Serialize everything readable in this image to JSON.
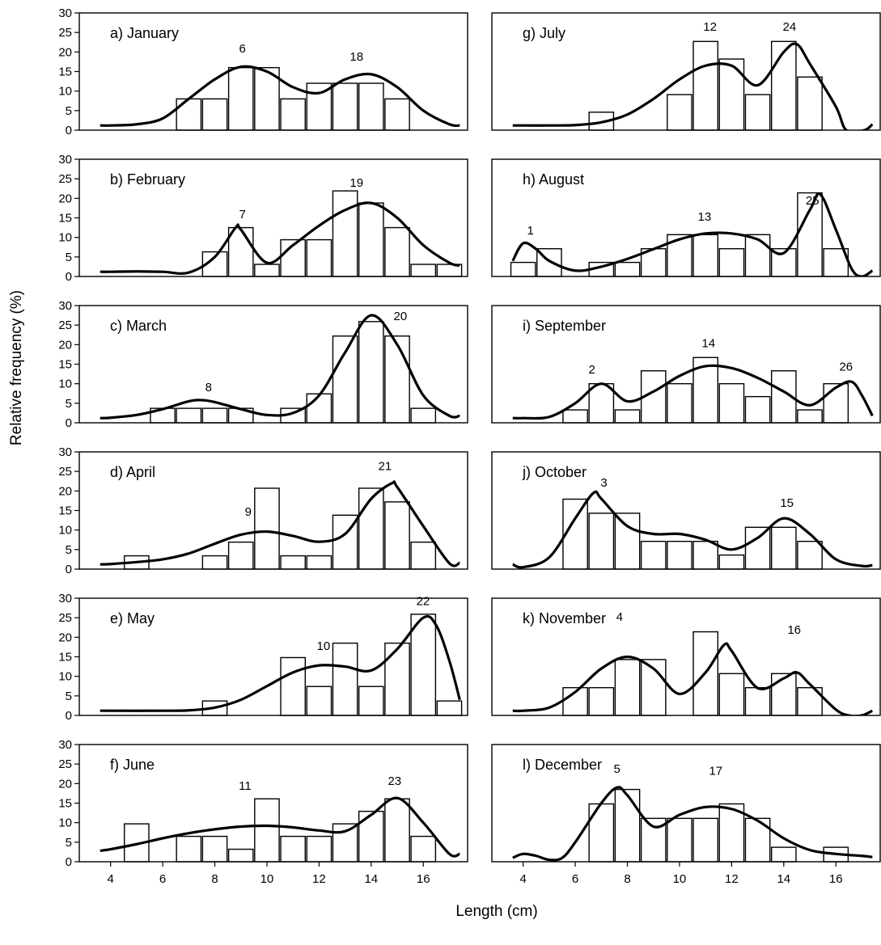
{
  "ylabel": "Relative frequency (%)",
  "xlabel": "Length (cm)",
  "chart_data": [
    {
      "type": "bar",
      "title": "a) January",
      "bar_color": "#ffffff",
      "curve_color": "#000000",
      "xlim": [
        2.8,
        17.7
      ],
      "ylim": [
        0,
        30
      ],
      "yticks": [
        0,
        5,
        10,
        15,
        20,
        25,
        30
      ],
      "bars": {
        "x": [
          7,
          8,
          9,
          10,
          11,
          12,
          13,
          14,
          15
        ],
        "values": [
          8,
          8,
          16,
          16,
          8,
          12,
          12,
          12,
          8
        ]
      },
      "curve": {
        "x": [
          3.6,
          4,
          5,
          6,
          7,
          8,
          9,
          10,
          11,
          12,
          13,
          14,
          15,
          16,
          17,
          17.4
        ],
        "values": [
          1.2,
          1.2,
          1.5,
          3,
          8,
          13,
          16.2,
          15,
          11,
          9.5,
          13,
          14.3,
          11,
          5,
          1.5,
          1.2
        ]
      },
      "annotations": [
        {
          "text": "6",
          "x": 9.06,
          "y": 19.9
        },
        {
          "text": "18",
          "x": 13.44,
          "y": 17.8
        }
      ]
    },
    {
      "type": "bar",
      "title": "b) February",
      "bar_color": "#ffffff",
      "curve_color": "#000000",
      "xlim": [
        2.8,
        17.7
      ],
      "ylim": [
        0,
        30
      ],
      "yticks": [
        0,
        5,
        10,
        15,
        20,
        25,
        30
      ],
      "bars": {
        "x": [
          8,
          9,
          10,
          11,
          12,
          13,
          14,
          15,
          16,
          17
        ],
        "values": [
          6.3,
          12.5,
          3.1,
          9.4,
          9.4,
          21.9,
          18.8,
          12.5,
          3.1,
          3.1
        ]
      },
      "curve": {
        "x": [
          3.6,
          4,
          5,
          6,
          7,
          8,
          8.8,
          9,
          10,
          11,
          12,
          13,
          14,
          15,
          16,
          17,
          17.4
        ],
        "values": [
          1.2,
          1.2,
          1.3,
          1.2,
          1,
          5,
          12.5,
          12,
          3.5,
          8,
          13,
          17,
          18.8,
          15,
          8,
          3.5,
          2.8
        ]
      },
      "annotations": [
        {
          "text": "7",
          "x": 9.06,
          "y": 14.9
        },
        {
          "text": "19",
          "x": 13.44,
          "y": 23
        }
      ]
    },
    {
      "type": "bar",
      "title": "c) March",
      "bar_color": "#ffffff",
      "curve_color": "#000000",
      "xlim": [
        2.8,
        17.7
      ],
      "ylim": [
        0,
        30
      ],
      "yticks": [
        0,
        5,
        10,
        15,
        20,
        25,
        30
      ],
      "bars": {
        "x": [
          6,
          7,
          8,
          9,
          11,
          12,
          13,
          14,
          15,
          16
        ],
        "values": [
          3.7,
          3.7,
          3.7,
          3.7,
          3.7,
          7.4,
          22.2,
          25.9,
          22.2,
          3.7
        ]
      },
      "curve": {
        "x": [
          3.6,
          4,
          5,
          6,
          7,
          7.5,
          8,
          9,
          10,
          11,
          12,
          13,
          14,
          15,
          16,
          17,
          17.4
        ],
        "values": [
          1.2,
          1.3,
          2,
          3.5,
          5.5,
          5.8,
          5.3,
          3.5,
          2,
          2.5,
          7,
          18,
          27.5,
          20,
          7,
          1.8,
          1.8
        ]
      },
      "annotations": [
        {
          "text": "8",
          "x": 7.76,
          "y": 8.1
        },
        {
          "text": "20",
          "x": 15.12,
          "y": 26.3
        }
      ]
    },
    {
      "type": "bar",
      "title": "d) April",
      "bar_color": "#ffffff",
      "curve_color": "#000000",
      "xlim": [
        2.8,
        17.7
      ],
      "ylim": [
        0,
        30
      ],
      "yticks": [
        0,
        5,
        10,
        15,
        20,
        25,
        30
      ],
      "bars": {
        "x": [
          5,
          8,
          9,
          10,
          11,
          12,
          13,
          14,
          15,
          16
        ],
        "values": [
          3.4,
          3.4,
          6.9,
          20.7,
          3.4,
          3.4,
          13.8,
          20.7,
          17.2,
          6.9
        ]
      },
      "curve": {
        "x": [
          3.6,
          4,
          5,
          6,
          7,
          8,
          9,
          10,
          11,
          12,
          13,
          14,
          14.8,
          15,
          16,
          17,
          17.4
        ],
        "values": [
          1.2,
          1.3,
          1.8,
          2.5,
          4,
          6.5,
          8.8,
          9.6,
          8.5,
          7,
          9,
          18,
          22,
          21,
          11,
          1.5,
          1.6
        ]
      },
      "annotations": [
        {
          "text": "9",
          "x": 9.28,
          "y": 13.7
        },
        {
          "text": "21",
          "x": 14.53,
          "y": 25.3
        }
      ]
    },
    {
      "type": "bar",
      "title": "e) May",
      "bar_color": "#ffffff",
      "curve_color": "#000000",
      "xlim": [
        2.8,
        17.7
      ],
      "ylim": [
        0,
        30
      ],
      "yticks": [
        0,
        5,
        10,
        15,
        20,
        25,
        30
      ],
      "bars": {
        "x": [
          8,
          11,
          12,
          13,
          14,
          15,
          16,
          17
        ],
        "values": [
          3.7,
          14.8,
          7.4,
          18.5,
          7.4,
          18.5,
          25.9,
          3.7
        ]
      },
      "curve": {
        "x": [
          3.6,
          4,
          6,
          7,
          8,
          9,
          10,
          11,
          12,
          13,
          14,
          15,
          16,
          16.5,
          17,
          17.4
        ],
        "values": [
          1.2,
          1.2,
          1.2,
          1.3,
          2,
          4,
          7.5,
          11,
          12.8,
          12.5,
          11.5,
          17,
          25,
          23,
          14,
          4
        ]
      },
      "annotations": [
        {
          "text": "10",
          "x": 12.17,
          "y": 16.8
        },
        {
          "text": "22",
          "x": 15.99,
          "y": 28.2
        }
      ]
    },
    {
      "type": "bar",
      "title": "f) June",
      "bar_color": "#ffffff",
      "curve_color": "#000000",
      "xlim": [
        2.8,
        17.7
      ],
      "ylim": [
        0,
        30
      ],
      "yticks": [
        0,
        5,
        10,
        15,
        20,
        25,
        30
      ],
      "xticks": [
        4,
        6,
        8,
        10,
        12,
        14,
        16
      ],
      "bars": {
        "x": [
          5,
          7,
          8,
          9,
          10,
          11,
          12,
          13,
          14,
          15,
          16
        ],
        "values": [
          9.7,
          6.5,
          6.5,
          3.2,
          16.1,
          6.5,
          6.5,
          9.7,
          12.9,
          16.1,
          6.5
        ]
      },
      "curve": {
        "x": [
          3.6,
          4,
          5,
          6,
          7,
          8,
          9,
          10,
          11,
          12,
          13,
          14,
          15,
          16,
          17,
          17.4
        ],
        "values": [
          2.8,
          3.2,
          4.5,
          6,
          7.3,
          8.3,
          9,
          9.2,
          8.8,
          8,
          7.8,
          12,
          16.3,
          10,
          2,
          2
        ]
      },
      "annotations": [
        {
          "text": "11",
          "x": 9.16,
          "y": 18.4
        },
        {
          "text": "23",
          "x": 14.9,
          "y": 19.7
        }
      ]
    },
    {
      "type": "bar",
      "title": "g) July",
      "bar_color": "#ffffff",
      "curve_color": "#000000",
      "xlim": [
        2.8,
        17.7
      ],
      "ylim": [
        0,
        30
      ],
      "bars": {
        "x": [
          7,
          10,
          11,
          12,
          13,
          14,
          15
        ],
        "values": [
          4.6,
          9.1,
          22.7,
          18.2,
          9.1,
          22.7,
          13.6
        ]
      },
      "curve": {
        "x": [
          3.6,
          4,
          5,
          6,
          7,
          8,
          9,
          10,
          11,
          12,
          13,
          14,
          14.5,
          15,
          16,
          16.4,
          17.1,
          17.4
        ],
        "values": [
          1.2,
          1.2,
          1.2,
          1.3,
          2,
          4,
          8,
          13,
          16.5,
          16.5,
          11.5,
          20,
          22,
          17,
          6,
          0,
          0,
          1.5
        ]
      },
      "annotations": [
        {
          "text": "12",
          "x": 11.17,
          "y": 25.5
        },
        {
          "text": "24",
          "x": 14.22,
          "y": 25.5
        }
      ]
    },
    {
      "type": "bar",
      "title": "h) August",
      "bar_color": "#ffffff",
      "curve_color": "#000000",
      "xlim": [
        2.8,
        17.7
      ],
      "ylim": [
        0,
        30
      ],
      "bars": {
        "x": [
          4,
          5,
          7,
          8,
          9,
          10,
          11,
          12,
          13,
          14,
          15,
          16
        ],
        "values": [
          3.6,
          7.1,
          3.6,
          3.6,
          7.1,
          10.7,
          10.7,
          7.1,
          10.7,
          7.1,
          21.4,
          7.1
        ]
      },
      "curve": {
        "x": [
          3.6,
          4,
          4.5,
          5,
          6,
          7,
          8,
          9,
          10,
          11,
          12,
          13,
          14,
          15,
          15.4,
          16,
          16.6,
          17,
          17.4
        ],
        "values": [
          4,
          8.5,
          7,
          4,
          1.5,
          2.5,
          4.5,
          7,
          9.5,
          11,
          11,
          9.5,
          6,
          17,
          21,
          12,
          2,
          0,
          1.5
        ]
      },
      "annotations": [
        {
          "text": "1",
          "x": 4.28,
          "y": 10.8
        },
        {
          "text": "13",
          "x": 10.96,
          "y": 14.3
        },
        {
          "text": "25",
          "x": 15.1,
          "y": 18.4
        }
      ]
    },
    {
      "type": "bar",
      "title": "i) September",
      "bar_color": "#ffffff",
      "curve_color": "#000000",
      "xlim": [
        2.8,
        17.7
      ],
      "ylim": [
        0,
        30
      ],
      "bars": {
        "x": [
          6,
          7,
          8,
          9,
          10,
          11,
          12,
          13,
          14,
          15,
          16
        ],
        "values": [
          3.3,
          10,
          3.3,
          13.3,
          10,
          16.7,
          10,
          6.7,
          13.3,
          3.3,
          10
        ]
      },
      "curve": {
        "x": [
          3.6,
          4,
          5,
          6,
          7,
          8,
          9,
          10,
          11,
          12,
          13,
          14,
          15,
          16,
          16.6,
          17,
          17.4
        ],
        "values": [
          1.2,
          1.2,
          1.5,
          5,
          10,
          5.5,
          8,
          12,
          14.5,
          14,
          11.5,
          8,
          4.5,
          9,
          10.5,
          7,
          1.8
        ]
      },
      "annotations": [
        {
          "text": "2",
          "x": 6.64,
          "y": 12.6
        },
        {
          "text": "14",
          "x": 11.11,
          "y": 19.3
        },
        {
          "text": "26",
          "x": 16.39,
          "y": 13.3
        }
      ]
    },
    {
      "type": "bar",
      "title": "j) October",
      "bar_color": "#ffffff",
      "curve_color": "#000000",
      "xlim": [
        2.8,
        17.7
      ],
      "ylim": [
        0,
        30
      ],
      "bars": {
        "x": [
          6,
          7,
          8,
          9,
          10,
          11,
          12,
          13,
          14,
          15
        ],
        "values": [
          17.9,
          14.3,
          14.3,
          7.1,
          7.1,
          7.1,
          3.6,
          10.7,
          10.7,
          7.1
        ]
      },
      "curve": {
        "x": [
          3.6,
          4,
          5,
          6,
          6.7,
          7,
          8,
          9,
          10,
          11,
          12,
          13,
          14,
          15,
          16,
          17,
          17.4
        ],
        "values": [
          1.2,
          0.5,
          3,
          13,
          19.5,
          18,
          11,
          9,
          9,
          7.5,
          5,
          8,
          13,
          9,
          2.5,
          0.8,
          1
        ]
      },
      "annotations": [
        {
          "text": "3",
          "x": 7.1,
          "y": 21.1
        },
        {
          "text": "15",
          "x": 14.12,
          "y": 15.9
        }
      ]
    },
    {
      "type": "bar",
      "title": "k) November",
      "bar_color": "#ffffff",
      "curve_color": "#000000",
      "xlim": [
        2.8,
        17.7
      ],
      "ylim": [
        0,
        30
      ],
      "bars": {
        "x": [
          6,
          7,
          8,
          9,
          11,
          12,
          13,
          14,
          15
        ],
        "values": [
          7.1,
          7.1,
          14.3,
          14.3,
          21.4,
          10.7,
          7.1,
          10.7,
          7.1
        ]
      },
      "curve": {
        "x": [
          3.6,
          4,
          5,
          6,
          7,
          8,
          9,
          10,
          11,
          11.7,
          12,
          13,
          14,
          14.5,
          15,
          16,
          16.5,
          17,
          17.4
        ],
        "values": [
          1.2,
          1.2,
          2,
          6,
          12,
          15,
          12,
          5.5,
          11,
          18,
          16.5,
          7,
          9.5,
          11,
          8,
          1.5,
          0,
          0,
          1.2
        ]
      },
      "annotations": [
        {
          "text": "4",
          "x": 7.7,
          "y": 24.2
        },
        {
          "text": "16",
          "x": 14.4,
          "y": 20.9
        }
      ]
    },
    {
      "type": "bar",
      "title": "l) December",
      "bar_color": "#ffffff",
      "curve_color": "#000000",
      "xlim": [
        2.8,
        17.7
      ],
      "ylim": [
        0,
        30
      ],
      "xticks": [
        4,
        6,
        8,
        10,
        12,
        14,
        16
      ],
      "bars": {
        "x": [
          7,
          8,
          9,
          10,
          11,
          12,
          13,
          14,
          16
        ],
        "values": [
          14.8,
          18.5,
          11.1,
          11.1,
          11.1,
          14.8,
          11.1,
          3.7,
          3.7
        ]
      },
      "curve": {
        "x": [
          3.6,
          4,
          4.5,
          5,
          5.5,
          6,
          7,
          7.6,
          8,
          9,
          10,
          11,
          12,
          13,
          14,
          15,
          16,
          17,
          17.4
        ],
        "values": [
          1,
          2,
          1.5,
          0.5,
          1,
          5,
          15,
          19,
          17,
          9,
          12,
          14,
          13.5,
          10.5,
          6,
          3,
          2,
          1.5,
          1.2
        ]
      },
      "annotations": [
        {
          "text": "5",
          "x": 7.6,
          "y": 22.8
        },
        {
          "text": "17",
          "x": 11.39,
          "y": 22.2
        }
      ]
    }
  ]
}
